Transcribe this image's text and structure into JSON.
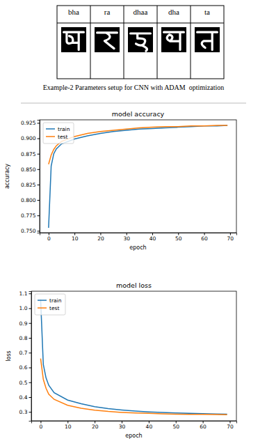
{
  "table": {
    "header": [
      "bha",
      "ra",
      "dhaa",
      "dha",
      "ta"
    ]
  },
  "caption": "Example-2 Parameters setup for CNN with ADAM  optimization",
  "chart_data": [
    {
      "type": "line",
      "title": "model accuracy",
      "x_label": "epoch",
      "y_label": "accuracy",
      "x": [
        0,
        1,
        2,
        3,
        5,
        10,
        15,
        20,
        25,
        30,
        35,
        40,
        45,
        50,
        55,
        60,
        65,
        69
      ],
      "series": [
        {
          "name": "train",
          "color": "#1f77b4",
          "values": [
            0.755,
            0.855,
            0.875,
            0.883,
            0.891,
            0.899,
            0.904,
            0.908,
            0.911,
            0.913,
            0.915,
            0.916,
            0.917,
            0.918,
            0.919,
            0.92,
            0.92,
            0.921
          ]
        },
        {
          "name": "test",
          "color": "#ff7f0e",
          "values": [
            0.858,
            0.873,
            0.882,
            0.888,
            0.895,
            0.903,
            0.908,
            0.911,
            0.913,
            0.915,
            0.917,
            0.918,
            0.919,
            0.919,
            0.92,
            0.92,
            0.921,
            0.921
          ]
        }
      ],
      "xlim": [
        -3.45,
        72.45
      ],
      "ylim": [
        0.747,
        0.93
      ],
      "xticks": [
        0,
        10,
        20,
        30,
        40,
        50,
        60,
        70
      ],
      "yticks": [
        {
          "value": 0.75,
          "label": "0.750"
        },
        0.775,
        {
          "value": 0.8,
          "label": "0.800"
        },
        0.825,
        {
          "value": 0.85,
          "label": "0.850"
        },
        0.875,
        {
          "value": 0.9,
          "label": "0.900"
        },
        0.925
      ],
      "grid": false,
      "legend": "upper left"
    },
    {
      "type": "line",
      "title": "model loss",
      "x_label": "epoch",
      "y_label": "loss",
      "x": [
        0,
        1,
        2,
        3,
        5,
        10,
        15,
        20,
        25,
        30,
        35,
        40,
        45,
        50,
        55,
        60,
        65,
        69
      ],
      "series": [
        {
          "name": "train",
          "color": "#1f77b4",
          "values": [
            1.06,
            0.62,
            0.53,
            0.48,
            0.43,
            0.38,
            0.355,
            0.335,
            0.322,
            0.313,
            0.306,
            0.3,
            0.296,
            0.293,
            0.29,
            0.288,
            0.286,
            0.285
          ]
        },
        {
          "name": "test",
          "color": "#ff7f0e",
          "values": [
            0.66,
            0.52,
            0.46,
            0.42,
            0.385,
            0.345,
            0.325,
            0.312,
            0.303,
            0.297,
            0.293,
            0.29,
            0.287,
            0.285,
            0.284,
            0.283,
            0.282,
            0.281
          ]
        }
      ],
      "xlim": [
        -3.45,
        72.45
      ],
      "ylim": [
        0.24,
        1.115
      ],
      "xticks": [
        0,
        10,
        20,
        30,
        40,
        50,
        60,
        70
      ],
      "yticks": [
        0.3,
        0.4,
        0.5,
        0.6,
        0.7,
        0.8,
        0.9,
        {
          "value": 1.0,
          "label": "1.0"
        },
        1.1
      ],
      "grid": false,
      "legend": "upper left"
    }
  ]
}
